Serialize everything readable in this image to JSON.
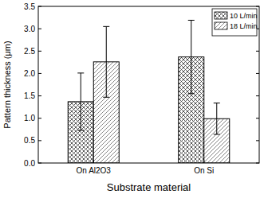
{
  "chart_data": {
    "type": "bar",
    "x_label": "Substrate material",
    "y_label": "Pattern thickness (μm)",
    "categories": [
      "On Al2O3",
      "On Si"
    ],
    "series": [
      {
        "name": "10 L/min",
        "color": "#444444",
        "values": [
          1.37,
          2.37
        ],
        "errors": [
          0.64,
          0.82
        ]
      },
      {
        "name": "18 L/min",
        "color": "#777777",
        "values": [
          2.26,
          0.99
        ],
        "errors": [
          0.79,
          0.35
        ]
      }
    ],
    "ylim": [
      0,
      3.5
    ],
    "yticks": [
      {
        "value": 0,
        "label": "0.0"
      },
      0.5,
      {
        "value": 1,
        "label": "1.0"
      },
      1.5,
      {
        "value": 2,
        "label": "2.0"
      },
      2.5,
      {
        "value": 3,
        "label": "3.0"
      },
      3.5
    ],
    "legend": "upper right",
    "grid": false
  }
}
